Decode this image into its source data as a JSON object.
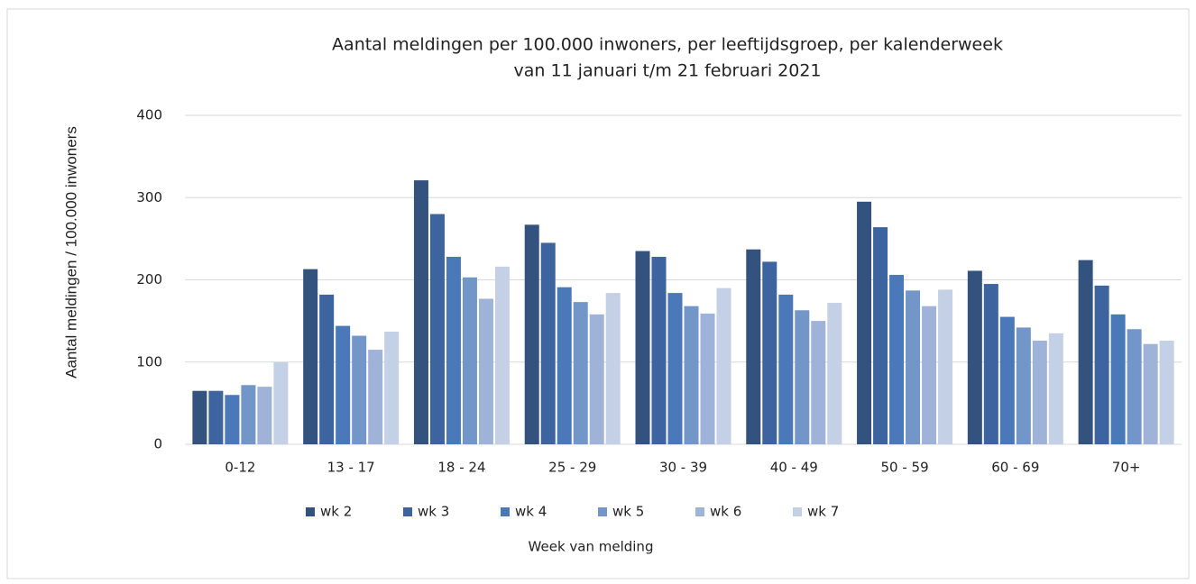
{
  "chart_data": {
    "type": "bar",
    "title": "Aantal meldingen per 100.000 inwoners, per leeftijdsgroep, per kalenderweek",
    "subtitle": "van 11 januari t/m 21 februari 2021",
    "y_label": "Aantal meldingen / 100.000 inwoners",
    "x_label": "Week van melding",
    "categories": [
      "0-12",
      "13 - 17",
      "18 - 24",
      "25 - 29",
      "30 - 39",
      "40 - 49",
      "50 - 59",
      "60 - 69",
      "70+"
    ],
    "series": [
      {
        "name": "wk 2",
        "color": "#34527e",
        "values": [
          65,
          213,
          321,
          267,
          235,
          237,
          295,
          211,
          224
        ]
      },
      {
        "name": "wk 3",
        "color": "#3e64a0",
        "values": [
          65,
          182,
          280,
          245,
          228,
          222,
          264,
          195,
          193
        ]
      },
      {
        "name": "wk 4",
        "color": "#4a78b8",
        "values": [
          60,
          144,
          228,
          191,
          184,
          182,
          206,
          155,
          158
        ]
      },
      {
        "name": "wk 5",
        "color": "#7396c9",
        "values": [
          72,
          132,
          203,
          173,
          168,
          163,
          187,
          142,
          140
        ]
      },
      {
        "name": "wk 6",
        "color": "#9eb3d7",
        "values": [
          70,
          115,
          177,
          158,
          159,
          150,
          168,
          126,
          122
        ]
      },
      {
        "name": "wk 7",
        "color": "#c3d0e6",
        "values": [
          100,
          137,
          216,
          184,
          190,
          172,
          188,
          135,
          126
        ]
      }
    ],
    "ylim": [
      0,
      400
    ],
    "yticks": [
      0,
      100,
      200,
      300,
      400
    ],
    "grid": true,
    "legend": "bottom"
  }
}
